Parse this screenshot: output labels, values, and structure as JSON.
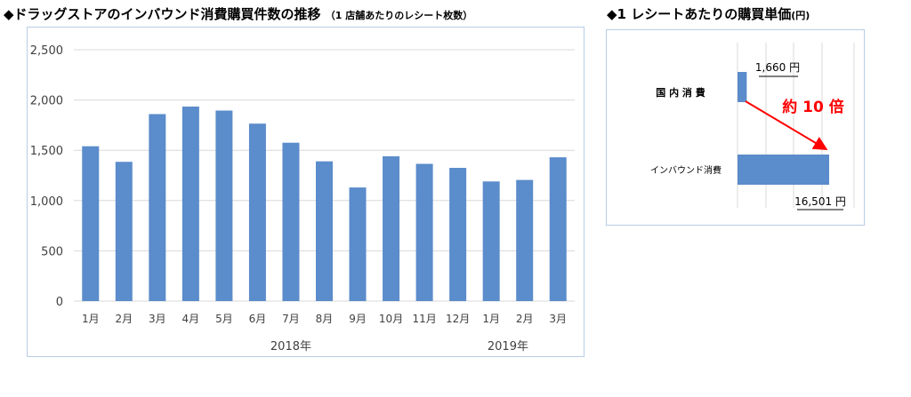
{
  "left_heading": {
    "title": "◆ドラッグストアのインバウンド消費購買件数の推移",
    "subtitle": "（1 店舗あたりのレシート枚数）"
  },
  "right_heading": {
    "title": "◆1 レシートあたりの購買単価",
    "unit": "(円)"
  },
  "colors": {
    "bar": "#5b8ccb",
    "arrow": "#ff0000",
    "grid": "#d9d9d9"
  },
  "chart_data": [
    {
      "type": "bar",
      "categories": [
        "1月",
        "2月",
        "3月",
        "4月",
        "5月",
        "6月",
        "7月",
        "8月",
        "9月",
        "10月",
        "11月",
        "12月",
        "1月",
        "2月",
        "3月"
      ],
      "values": [
        1540,
        1385,
        1860,
        1935,
        1895,
        1765,
        1575,
        1390,
        1130,
        1440,
        1365,
        1325,
        1190,
        1205,
        1430
      ],
      "y_ticks": [
        "0",
        "500",
        "1,000",
        "1,500",
        "2,000",
        "2,500"
      ],
      "ylim": [
        0,
        2500
      ],
      "year_labels": [
        "2018年",
        "2019年"
      ],
      "grid": true
    },
    {
      "type": "bar",
      "orientation": "horizontal",
      "categories": [
        "国 内 消 費",
        "インバウンド消費"
      ],
      "values": [
        1660,
        16501
      ],
      "value_labels": [
        "1,660 円",
        "16,501 円"
      ],
      "annotation": "約 10 倍",
      "grid": true
    }
  ]
}
